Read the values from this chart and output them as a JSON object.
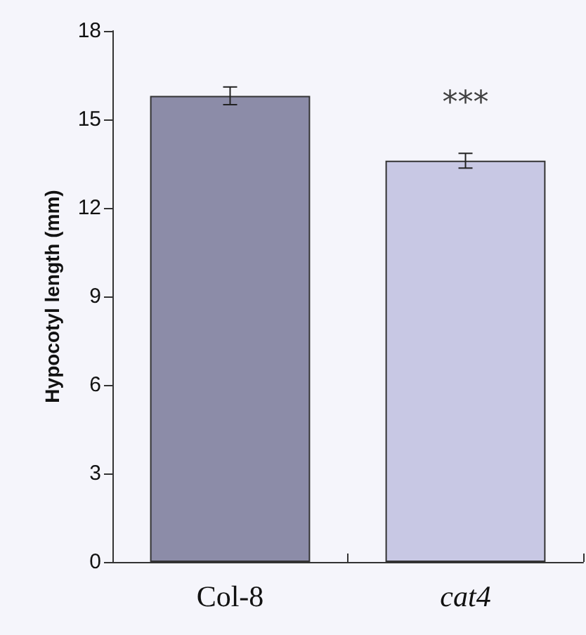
{
  "chart_data": {
    "type": "bar",
    "ylabel": "Hypocotyl length (mm)",
    "categories": [
      "Col-8",
      "cat4"
    ],
    "values": [
      15.8,
      13.6
    ],
    "errors": [
      0.3,
      0.25
    ],
    "colors": [
      "#8c8ca8",
      "#c8c8e4"
    ],
    "ylim": [
      0,
      18
    ],
    "yticks": [
      0,
      3,
      6,
      9,
      12,
      15,
      18
    ],
    "annotations": [
      {
        "text": "***",
        "x": "cat4",
        "y": 13.6
      }
    ],
    "grid": false
  }
}
